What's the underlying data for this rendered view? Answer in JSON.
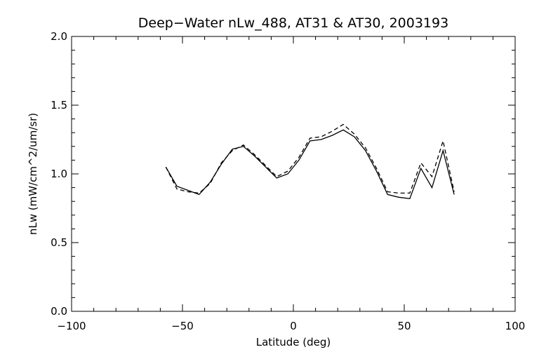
{
  "chart_data": {
    "type": "line",
    "title": "Deep−Water nLw_488, AT31 & AT30, 2003193",
    "xlabel": "Latitude (deg)",
    "ylabel": "nLw (mW/cm^2/um/sr)",
    "xlim": [
      -100,
      100
    ],
    "ylim": [
      0.0,
      2.0
    ],
    "x_ticks": [
      -100,
      -50,
      0,
      50,
      100
    ],
    "x_tick_labels": [
      "−100",
      "−50",
      "0",
      "50",
      "100"
    ],
    "y_ticks": [
      0.0,
      0.5,
      1.0,
      1.5,
      2.0
    ],
    "y_tick_labels": [
      "0.0",
      "0.5",
      "1.0",
      "1.5",
      "2.0"
    ],
    "grid": false,
    "legend": "none",
    "series": [
      {
        "style": "solid",
        "x": [
          -57.5,
          -52.5,
          -47.5,
          -42.5,
          -37.5,
          -32.5,
          -27.5,
          -22.5,
          -17.5,
          -12.5,
          -7.5,
          -2.5,
          2.5,
          7.5,
          12.5,
          17.5,
          22.5,
          27.5,
          32.5,
          37.5,
          42.5,
          47.5,
          52.5,
          57.5,
          62.5,
          67.5,
          72.5
        ],
        "values": [
          1.05,
          0.91,
          0.88,
          0.85,
          0.94,
          1.07,
          1.18,
          1.2,
          1.13,
          1.05,
          0.97,
          1.0,
          1.1,
          1.24,
          1.25,
          1.28,
          1.32,
          1.27,
          1.17,
          1.02,
          0.85,
          0.83,
          0.82,
          1.04,
          0.9,
          1.17,
          0.85
        ]
      },
      {
        "style": "dashed",
        "x": [
          -57.5,
          -52.5,
          -47.5,
          -42.5,
          -37.5,
          -32.5,
          -27.5,
          -22.5,
          -17.5,
          -12.5,
          -7.5,
          -2.5,
          2.5,
          7.5,
          12.5,
          17.5,
          22.5,
          27.5,
          32.5,
          37.5,
          42.5,
          47.5,
          52.5,
          57.5,
          62.5,
          67.5,
          72.5
        ],
        "values": [
          1.05,
          0.89,
          0.87,
          0.86,
          0.93,
          1.08,
          1.17,
          1.21,
          1.14,
          1.06,
          0.98,
          1.02,
          1.12,
          1.26,
          1.27,
          1.31,
          1.36,
          1.29,
          1.19,
          1.04,
          0.87,
          0.86,
          0.86,
          1.08,
          0.98,
          1.24,
          0.87
        ]
      }
    ]
  }
}
